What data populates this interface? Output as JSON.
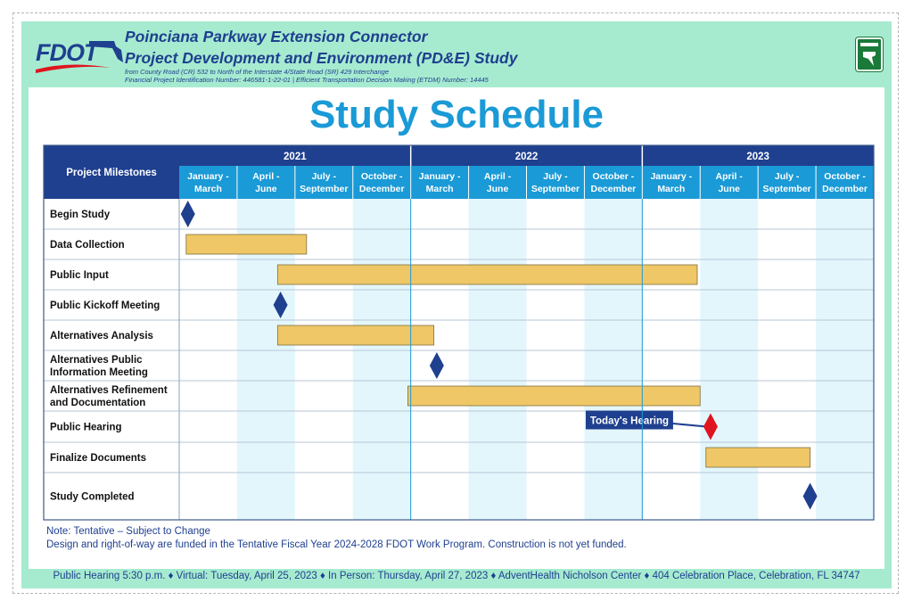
{
  "header": {
    "logo_text": "FDOT",
    "title_line1": "Poinciana Parkway Extension Connector",
    "title_line2": "Project Development and Environment (PD&E) Study",
    "sub_line1": "from County Road (CR) 532 to North of the Interstate 4/State Road (SR) 429 Interchange",
    "sub_line2": "Financial Project Identification Number: 446581-1-22-01 |  Efficient Transportation Decision Making (ETDM) Number: 14445",
    "turnpike_icon": "florida-turnpike-icon"
  },
  "page_title": "Study Schedule",
  "notes": {
    "line1": "Note: Tentative – Subject to Change",
    "line2": "Design and right-of-way are funded in the Tentative Fiscal Year 2024-2028 FDOT Work Program. Construction is not yet funded."
  },
  "footer": "Public Hearing 5:30 p.m. ♦ Virtual: Tuesday, April 25, 2023 ♦ In Person: Thursday, April 27, 2023 ♦  AdventHealth Nicholson Center ♦ 404 Celebration Place, Celebration, FL 34747",
  "colors": {
    "header_blue": "#1f3f8f",
    "quarter_blue": "#1a9ad6",
    "bar_fill": "#efc766",
    "milestone": "#1f3f8f",
    "today_milestone": "#e0141e",
    "band": "#e3f6fc",
    "frame_green": "#a6ebd0"
  },
  "chart_data": {
    "type": "gantt",
    "row_header_label": "Project Milestones",
    "years": [
      "2021",
      "2022",
      "2023"
    ],
    "quarters": [
      [
        "January -",
        "March"
      ],
      [
        "April -",
        "June"
      ],
      [
        "July -",
        "September"
      ],
      [
        "October -",
        "December"
      ],
      [
        "January -",
        "March"
      ],
      [
        "April -",
        "June"
      ],
      [
        "July -",
        "September"
      ],
      [
        "October -",
        "December"
      ],
      [
        "January -",
        "March"
      ],
      [
        "April -",
        "June"
      ],
      [
        "July -",
        "September"
      ],
      [
        "October -",
        "December"
      ]
    ],
    "x_unit": "quarter index from Q1 2021 (0 = Jan 2021, 12 = Jan 2024)",
    "rows": [
      {
        "label": [
          "Begin Study"
        ],
        "type": "milestone",
        "at": 0.15
      },
      {
        "label": [
          "Data Collection"
        ],
        "type": "bar",
        "start": 0.12,
        "end": 2.2
      },
      {
        "label": [
          "Public Input"
        ],
        "type": "bar",
        "start": 1.7,
        "end": 8.95
      },
      {
        "label": [
          "Public Kickoff Meeting"
        ],
        "type": "milestone",
        "at": 1.75
      },
      {
        "label": [
          "Alternatives Analysis"
        ],
        "type": "bar",
        "start": 1.7,
        "end": 4.4
      },
      {
        "label": [
          "Alternatives Public",
          "Information Meeting"
        ],
        "type": "milestone",
        "at": 4.45
      },
      {
        "label": [
          "Alternatives Refinement",
          "and Documentation"
        ],
        "type": "bar",
        "start": 3.95,
        "end": 9.0
      },
      {
        "label": [
          "Public Hearing"
        ],
        "type": "milestone",
        "at": 9.18,
        "highlight": true,
        "callout": "Today's Hearing"
      },
      {
        "label": [
          "Finalize Documents"
        ],
        "type": "bar",
        "start": 9.1,
        "end": 10.9
      },
      {
        "label": [
          "Study Completed"
        ],
        "type": "milestone",
        "at": 10.9
      }
    ]
  }
}
